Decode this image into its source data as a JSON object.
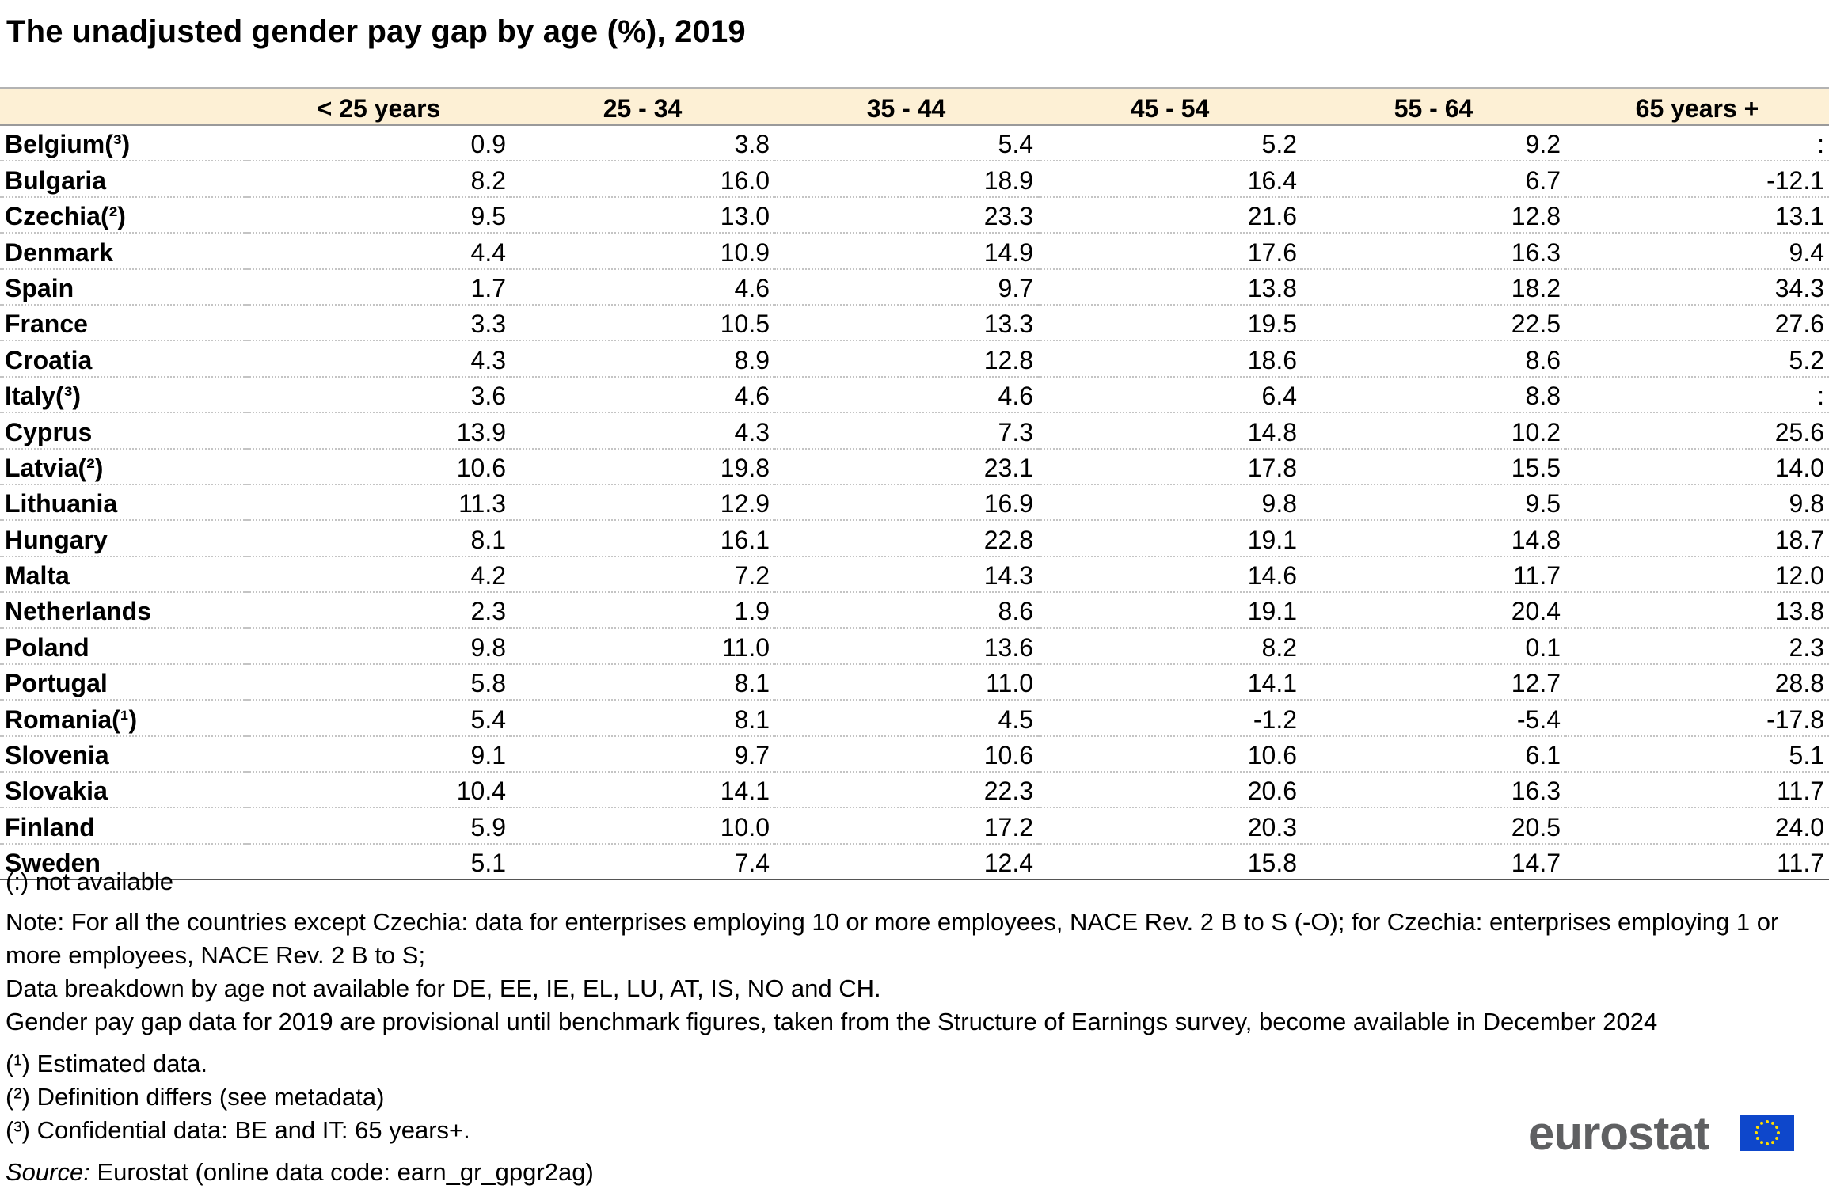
{
  "title": "The unadjusted gender pay gap by age (%), 2019",
  "chart_data": {
    "type": "table",
    "title": "The unadjusted gender pay gap by age (%), 2019",
    "columns": [
      "< 25 years",
      "25 - 34",
      "35 - 44",
      "45 - 54",
      "55 - 64",
      "65 years +"
    ],
    "rows": [
      {
        "country": "Belgium(³)",
        "values": [
          "0.9",
          "3.8",
          "5.4",
          "5.2",
          "9.2",
          ":"
        ]
      },
      {
        "country": "Bulgaria",
        "values": [
          "8.2",
          "16.0",
          "18.9",
          "16.4",
          "6.7",
          "-12.1"
        ]
      },
      {
        "country": "Czechia(²)",
        "values": [
          "9.5",
          "13.0",
          "23.3",
          "21.6",
          "12.8",
          "13.1"
        ]
      },
      {
        "country": "Denmark",
        "values": [
          "4.4",
          "10.9",
          "14.9",
          "17.6",
          "16.3",
          "9.4"
        ]
      },
      {
        "country": "Spain",
        "values": [
          "1.7",
          "4.6",
          "9.7",
          "13.8",
          "18.2",
          "34.3"
        ]
      },
      {
        "country": "France",
        "values": [
          "3.3",
          "10.5",
          "13.3",
          "19.5",
          "22.5",
          "27.6"
        ]
      },
      {
        "country": "Croatia",
        "values": [
          "4.3",
          "8.9",
          "12.8",
          "18.6",
          "8.6",
          "5.2"
        ]
      },
      {
        "country": "Italy(³)",
        "values": [
          "3.6",
          "4.6",
          "4.6",
          "6.4",
          "8.8",
          ":"
        ]
      },
      {
        "country": "Cyprus",
        "values": [
          "13.9",
          "4.3",
          "7.3",
          "14.8",
          "10.2",
          "25.6"
        ]
      },
      {
        "country": "Latvia(²)",
        "values": [
          "10.6",
          "19.8",
          "23.1",
          "17.8",
          "15.5",
          "14.0"
        ]
      },
      {
        "country": "Lithuania",
        "values": [
          "11.3",
          "12.9",
          "16.9",
          "9.8",
          "9.5",
          "9.8"
        ]
      },
      {
        "country": "Hungary",
        "values": [
          "8.1",
          "16.1",
          "22.8",
          "19.1",
          "14.8",
          "18.7"
        ]
      },
      {
        "country": "Malta",
        "values": [
          "4.2",
          "7.2",
          "14.3",
          "14.6",
          "11.7",
          "12.0"
        ]
      },
      {
        "country": "Netherlands",
        "values": [
          "2.3",
          "1.9",
          "8.6",
          "19.1",
          "20.4",
          "13.8"
        ]
      },
      {
        "country": "Poland",
        "values": [
          "9.8",
          "11.0",
          "13.6",
          "8.2",
          "0.1",
          "2.3"
        ]
      },
      {
        "country": "Portugal",
        "values": [
          "5.8",
          "8.1",
          "11.0",
          "14.1",
          "12.7",
          "28.8"
        ]
      },
      {
        "country": "Romania(¹)",
        "values": [
          "5.4",
          "8.1",
          "4.5",
          "-1.2",
          "-5.4",
          "-17.8"
        ]
      },
      {
        "country": "Slovenia",
        "values": [
          "9.1",
          "9.7",
          "10.6",
          "10.6",
          "6.1",
          "5.1"
        ]
      },
      {
        "country": "Slovakia",
        "values": [
          "10.4",
          "14.1",
          "22.3",
          "20.6",
          "16.3",
          "11.7"
        ]
      },
      {
        "country": "Finland",
        "values": [
          "5.9",
          "10.0",
          "17.2",
          "20.3",
          "20.5",
          "24.0"
        ]
      },
      {
        "country": "Sweden",
        "values": [
          "5.1",
          "7.4",
          "12.4",
          "15.8",
          "14.7",
          "11.7"
        ]
      }
    ]
  },
  "notes": {
    "not_available": "(:) not available",
    "note": "Note:  For all the countries except Czechia: data for enterprises employing 10 or more employees, NACE Rev. 2 B to S (-O);  for Czechia: enterprises employing 1 or more employees, NACE Rev. 2 B to S;",
    "breakdown": "Data breakdown by age not available for DE, EE, IE, EL, LU, AT, IS, NO and CH.",
    "provisional": "Gender pay gap data for 2019 are provisional until benchmark figures, taken from the Structure of Earnings survey, become available in December 2024",
    "footnote_1": "(¹) Estimated data.",
    "footnote_2": "(²) Definition differs (see metadata)",
    "footnote_3": "(³) Confidential data: BE and IT: 65 years+.",
    "source_label": "Source:",
    "source_text": " Eurostat (online data code: earn_gr_gpgr2ag)"
  },
  "logo": {
    "text": "eurostat",
    "text_color": "#5f6062",
    "flag_color": "#0e47cb",
    "star_color": "#ffdd00"
  }
}
